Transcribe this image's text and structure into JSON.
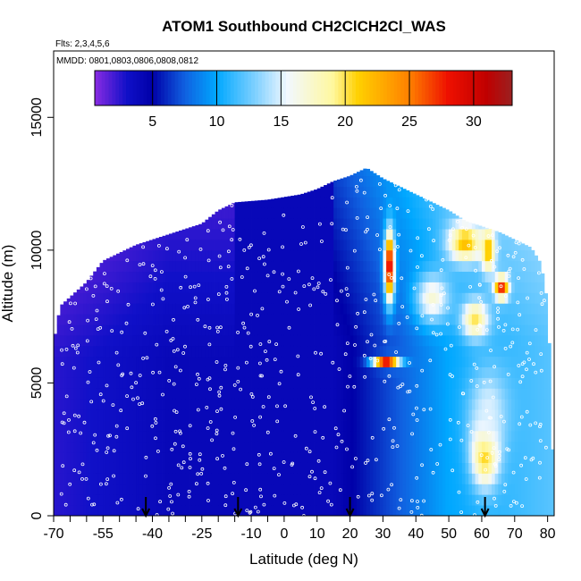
{
  "chart_data": {
    "type": "heatmap",
    "title": "ATOM1 Southbound CH2ClCH2Cl_WAS",
    "flights_label": "Flts: 2,3,4,5,6",
    "dates_label": "MMDD: 0801,0803,0806,0808,0812",
    "xlabel": "Latitude (deg N)",
    "ylabel": "Altitude (m)",
    "xlim": [
      -70,
      82
    ],
    "ylim": [
      0,
      17500
    ],
    "x_ticks": [
      -70,
      -55,
      -40,
      -25,
      -10,
      0,
      10,
      20,
      30,
      40,
      50,
      60,
      70,
      80
    ],
    "x_tick_labels": [
      "-70",
      "-55",
      "-40",
      "-25",
      "-10",
      "0",
      "10",
      "20",
      "30",
      "40",
      "50",
      "60",
      "70",
      "80"
    ],
    "x_minor_ticks": [
      -65,
      -60,
      -50,
      -45,
      -35,
      -30,
      -20,
      -15,
      -5
    ],
    "y_ticks": [
      0,
      5000,
      10000,
      15000
    ],
    "y_tick_labels": [
      "0",
      "5000",
      "10000",
      "15000"
    ],
    "colorbar": {
      "range": [
        0.5,
        33
      ],
      "ticks": [
        5,
        10,
        15,
        20,
        25,
        30
      ],
      "tick_labels": [
        "5",
        "10",
        "15",
        "20",
        "25",
        "30"
      ],
      "stops": [
        {
          "v": 0.5,
          "color": "#8a2be2"
        },
        {
          "v": 3,
          "color": "#1010c8"
        },
        {
          "v": 5,
          "color": "#0000a8"
        },
        {
          "v": 7.5,
          "color": "#1060e0"
        },
        {
          "v": 10,
          "color": "#00a8ff"
        },
        {
          "v": 13,
          "color": "#7fd0ff"
        },
        {
          "v": 15.5,
          "color": "#f2f8ff"
        },
        {
          "v": 19,
          "color": "#fff8a0"
        },
        {
          "v": 21,
          "color": "#ffd000"
        },
        {
          "v": 25,
          "color": "#ff8000"
        },
        {
          "v": 28,
          "color": "#ee1000"
        },
        {
          "v": 31,
          "color": "#c00000"
        },
        {
          "v": 33,
          "color": "#9a2020"
        }
      ]
    },
    "envelope": [
      [
        -70,
        6500
      ],
      [
        -68,
        7900
      ],
      [
        -60,
        8800
      ],
      [
        -55,
        9600
      ],
      [
        -45,
        10200
      ],
      [
        -35,
        10600
      ],
      [
        -25,
        11000
      ],
      [
        -20,
        11500
      ],
      [
        -15,
        11800
      ],
      [
        -5,
        11900
      ],
      [
        0,
        12000
      ],
      [
        5,
        12100
      ],
      [
        10,
        12300
      ],
      [
        15,
        12600
      ],
      [
        20,
        12800
      ],
      [
        25,
        13100
      ],
      [
        30,
        12700
      ],
      [
        35,
        12400
      ],
      [
        40,
        12100
      ],
      [
        45,
        11800
      ],
      [
        50,
        11500
      ],
      [
        55,
        11100
      ],
      [
        60,
        10900
      ],
      [
        65,
        10700
      ],
      [
        70,
        10400
      ],
      [
        75,
        10100
      ],
      [
        78,
        9500
      ],
      [
        80,
        8000
      ],
      [
        81,
        5000
      ],
      [
        82,
        0
      ]
    ],
    "enhancements": [
      {
        "lat": 61,
        "alt": 2400,
        "sx": 4,
        "sy": 1200,
        "value": 23
      },
      {
        "lat": 62,
        "alt": 4000,
        "sx": 6,
        "sy": 1600,
        "value": 15
      },
      {
        "lat": 31,
        "alt": 5800,
        "sx": 4,
        "sy": 200,
        "value": 28
      },
      {
        "lat": 32,
        "alt": 9400,
        "sx": 1.5,
        "sy": 1300,
        "value": 30
      },
      {
        "lat": 55,
        "alt": 10300,
        "sx": 5,
        "sy": 700,
        "value": 22
      },
      {
        "lat": 62,
        "alt": 10000,
        "sx": 2,
        "sy": 800,
        "value": 22
      },
      {
        "lat": 66,
        "alt": 8600,
        "sx": 2,
        "sy": 400,
        "value": 28
      },
      {
        "lat": 58,
        "alt": 7400,
        "sx": 4,
        "sy": 700,
        "value": 20
      },
      {
        "lat": 45,
        "alt": 8200,
        "sx": 5,
        "sy": 900,
        "value": 17
      }
    ],
    "arrows": [
      -42,
      -14,
      20,
      61
    ]
  }
}
